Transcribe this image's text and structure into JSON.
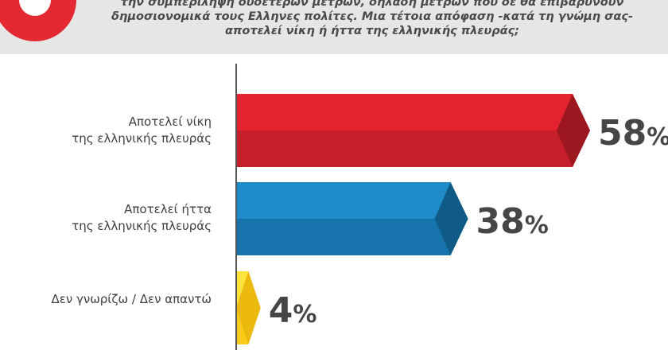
{
  "question": {
    "lines": [
      "την συμπερίληψη ουδετέρων μέτρων, δηλαδή μέτρων που δε θα επιβαρύνουν",
      "δημοσιονομικά τους Ελληνες πολίτες. Μια τέτοια απόφαση -κατά τη γνώμη σας-",
      "αποτελεί νίκη ή ήττα της ελληνικής πλευράς;"
    ]
  },
  "colors": {
    "header_bg": "#e6e6e7",
    "badge": "#e52933",
    "axis": "#555555",
    "value_text": "#464648"
  },
  "chart_data": {
    "type": "bar",
    "orientation": "horizontal",
    "categories": [
      [
        "Αποτελεί νίκη",
        "της ελληνικής πλευράς"
      ],
      [
        "Αποτελεί ήττα",
        "της ελληνικής πλευράς"
      ],
      [
        "Δεν γνωρίζω / Δεν απαντώ"
      ]
    ],
    "values": [
      58,
      38,
      4
    ],
    "value_labels": [
      {
        "num": "58",
        "unit": "%"
      },
      {
        "num": "38",
        "unit": "%"
      },
      {
        "num": "4",
        "unit": "%"
      }
    ],
    "bar_colors": [
      {
        "top": "#e4232e",
        "bottom": "#c41f2a",
        "tip": "#9c1720"
      },
      {
        "top": "#1f8bc9",
        "bottom": "#1773ab",
        "tip": "#0f5a86"
      },
      {
        "top": "#fde33a",
        "bottom": "#f7cc16",
        "tip": "#ecb90e"
      }
    ],
    "xlim": [
      0,
      58
    ],
    "grid": false,
    "legend": "none"
  }
}
